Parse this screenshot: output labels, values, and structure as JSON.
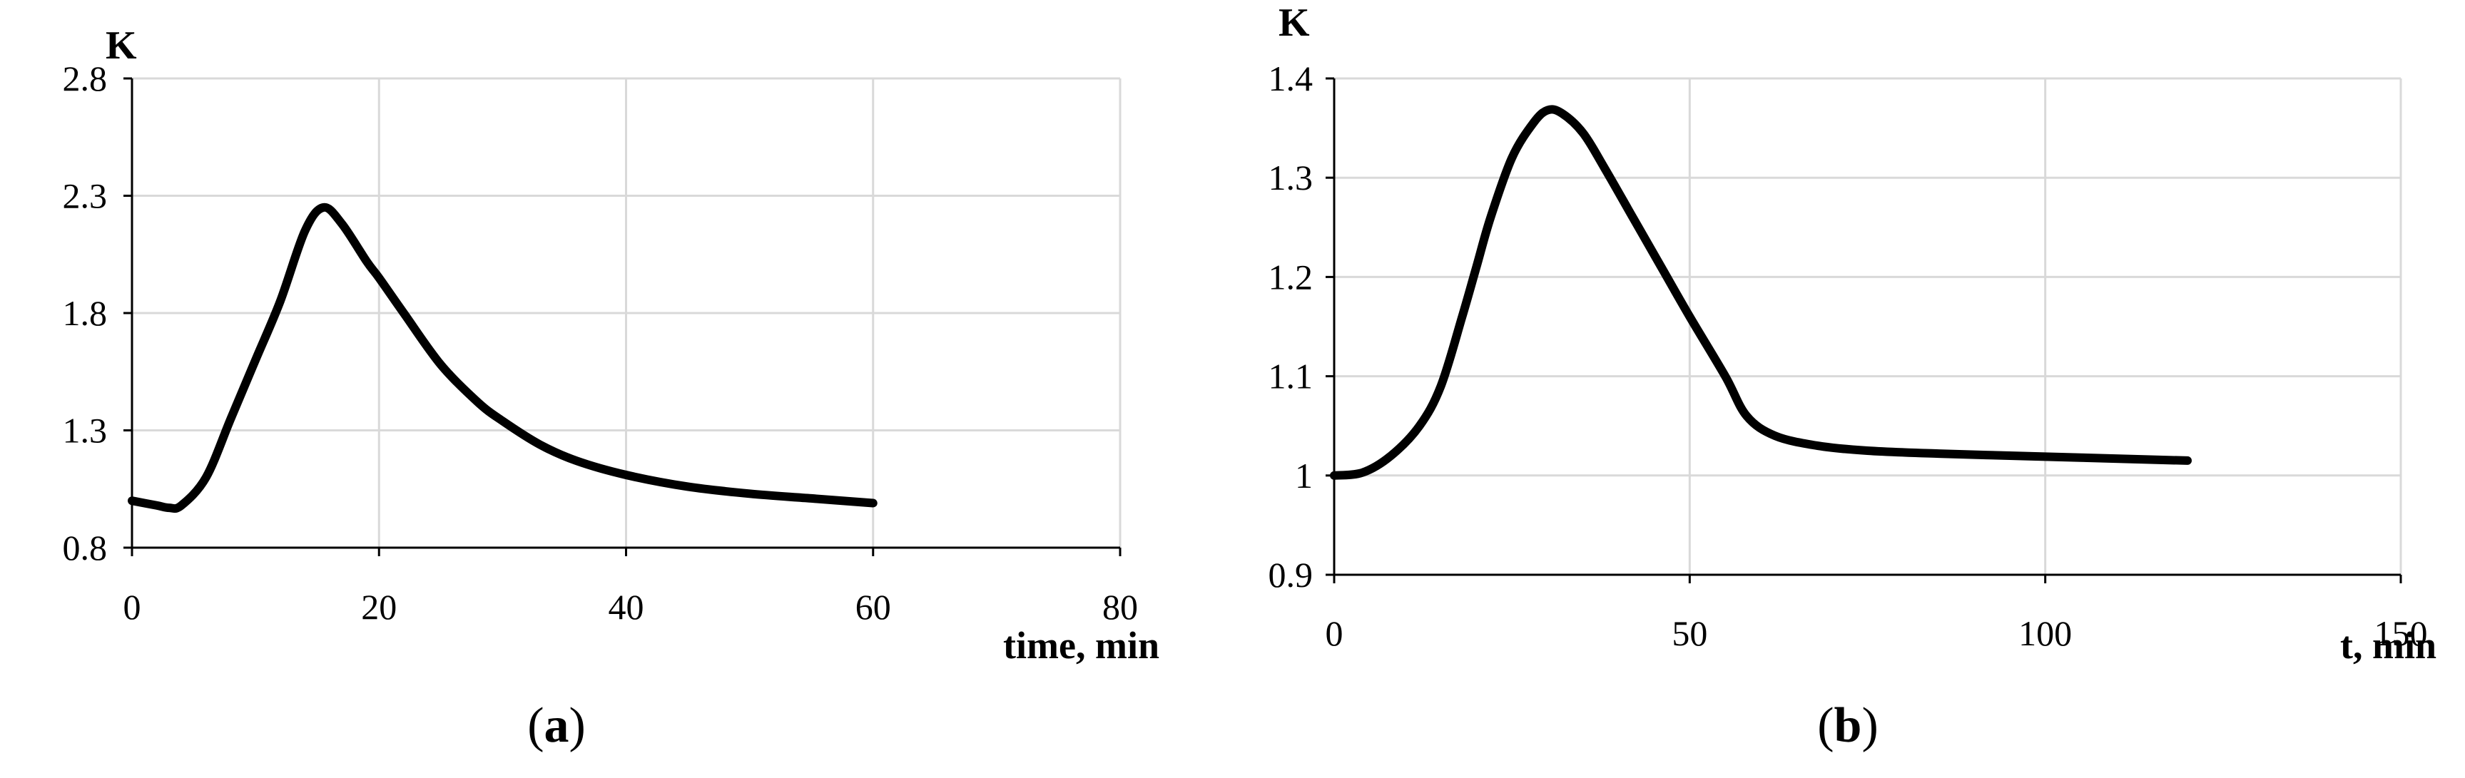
{
  "chart_data": [
    {
      "id": "a",
      "type": "line",
      "ylabel": "K",
      "xlabel": "time, min",
      "caption_letter": "a",
      "xlim": [
        0,
        80
      ],
      "ylim": [
        0.8,
        2.8
      ],
      "xticks": [
        "0",
        "20",
        "40",
        "60",
        "80"
      ],
      "yticks": [
        "0.8",
        "1.3",
        "1.8",
        "2.3",
        "2.8"
      ],
      "grid": true,
      "series": [
        {
          "x": [
            0,
            2,
            3,
            4,
            6,
            8,
            10,
            12,
            14,
            15.5,
            17,
            19,
            20,
            22,
            25,
            28,
            30,
            33,
            36,
            40,
            45,
            50,
            55,
            60
          ],
          "y": [
            1.0,
            0.98,
            0.97,
            0.98,
            1.1,
            1.35,
            1.6,
            1.85,
            2.15,
            2.25,
            2.18,
            2.02,
            1.95,
            1.8,
            1.58,
            1.42,
            1.34,
            1.24,
            1.17,
            1.11,
            1.06,
            1.03,
            1.01,
            0.99
          ]
        }
      ]
    },
    {
      "id": "b",
      "type": "line",
      "ylabel": "K",
      "xlabel": "t, min",
      "caption_letter": "b",
      "xlim": [
        0,
        150
      ],
      "ylim": [
        0.9,
        1.4
      ],
      "xticks": [
        "0",
        "50",
        "100",
        "150"
      ],
      "yticks": [
        "0.9",
        "1",
        "1.1",
        "1.2",
        "1.3",
        "1.4"
      ],
      "grid": true,
      "series": [
        {
          "x": [
            0,
            4,
            8,
            12,
            15,
            18,
            20,
            22,
            25,
            28,
            30,
            32,
            35,
            38,
            42,
            46,
            50,
            55,
            58,
            62,
            68,
            75,
            85,
            95,
            105,
            120
          ],
          "y": [
            1.0,
            1.003,
            1.02,
            1.05,
            1.09,
            1.16,
            1.21,
            1.26,
            1.32,
            1.355,
            1.368,
            1.365,
            1.345,
            1.31,
            1.26,
            1.21,
            1.16,
            1.1,
            1.06,
            1.04,
            1.03,
            1.025,
            1.022,
            1.02,
            1.018,
            1.015
          ]
        }
      ]
    }
  ]
}
